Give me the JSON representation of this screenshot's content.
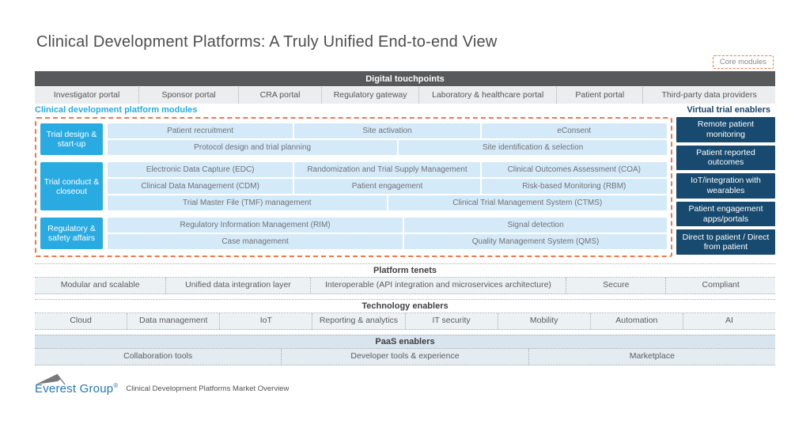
{
  "title": "Clinical Development Platforms: A Truly Unified End-to-end View",
  "core_modules_label": "Core modules",
  "colors": {
    "accent_cyan": "#29abe2",
    "navy": "#174a6e",
    "module_cell_bg": "#d5eaf8",
    "dark_bar": "#58595b",
    "dashed_border_orange": "#f0764e",
    "paas_header_bg": "#d8e5ee",
    "paas_cell_bg": "#e4ebf1",
    "section_cell_bg": "#ecf1f4",
    "logo_blue": "#2577b5"
  },
  "digital_touchpoints": {
    "header": "Digital touchpoints",
    "portals": [
      {
        "label": "Investigator portal",
        "flex": 132
      },
      {
        "label": "Sponsor portal",
        "flex": 125
      },
      {
        "label": "CRA portal",
        "flex": 103
      },
      {
        "label": "Regulatory gateway",
        "flex": 122
      },
      {
        "label": "Laboratory & healthcare portal",
        "flex": 177
      },
      {
        "label": "Patient portal",
        "flex": 107
      },
      {
        "label": "Third-party data providers",
        "flex": 170
      }
    ]
  },
  "platform_modules_label": "Clinical development platform modules",
  "module_groups": [
    {
      "label": "Trial design & start-up",
      "rows": [
        [
          {
            "label": "Patient recruitment",
            "flex": 1
          },
          {
            "label": "Site activation",
            "flex": 1
          },
          {
            "label": "eConsent",
            "flex": 1
          }
        ],
        [
          {
            "label": "Protocol design and trial planning",
            "flex": 52
          },
          {
            "label": "Site identification & selection",
            "flex": 48
          }
        ]
      ]
    },
    {
      "label": "Trial conduct & closeout",
      "rows": [
        [
          {
            "label": "Electronic Data Capture (EDC)",
            "flex": 1
          },
          {
            "label": "Randomization and Trial Supply Management",
            "flex": 1
          },
          {
            "label": "Clinical Outcomes Assessment (COA)",
            "flex": 1
          }
        ],
        [
          {
            "label": "Clinical Data Management (CDM)",
            "flex": 1
          },
          {
            "label": "Patient engagement",
            "flex": 1
          },
          {
            "label": "Risk-based Monitoring (RBM)",
            "flex": 1
          }
        ],
        [
          {
            "label": "Trial Master File (TMF) management",
            "flex": 50
          },
          {
            "label": "Clinical Trial Management System (CTMS)",
            "flex": 50
          }
        ]
      ]
    },
    {
      "label": "Regulatory & safety affairs",
      "rows": [
        [
          {
            "label": "Regulatory Information Management (RIM)",
            "flex": 53
          },
          {
            "label": "Signal detection",
            "flex": 47
          }
        ],
        [
          {
            "label": "Case management",
            "flex": 53
          },
          {
            "label": "Quality Management System (QMS)",
            "flex": 47
          }
        ]
      ]
    }
  ],
  "virtual_trial_enablers": {
    "label": "Virtual trial enablers",
    "items": [
      "Remote patient monitoring",
      "Patient reported outcomes",
      "IoT/integration with wearables",
      "Patient engagement apps/portals",
      "Direct to patient / Direct from patient"
    ]
  },
  "sections": [
    {
      "header": "Platform tenets",
      "header_bg": "#ffffff",
      "cell_bg": "#ecf1f4",
      "cells": [
        {
          "label": "Modular and scalable",
          "flex": 165
        },
        {
          "label": "Unified data integration layer",
          "flex": 182
        },
        {
          "label": "Interoperable (API integration and microservices architecture)",
          "flex": 330
        },
        {
          "label": "Secure",
          "flex": 123
        },
        {
          "label": "Compliant",
          "flex": 136
        }
      ]
    },
    {
      "header": "Technology enablers",
      "header_bg": "#ffffff",
      "cell_bg": "#ecf1f4",
      "cells": [
        {
          "label": "Cloud",
          "flex": 1
        },
        {
          "label": "Data management",
          "flex": 1
        },
        {
          "label": "IoT",
          "flex": 1
        },
        {
          "label": "Reporting & analytics",
          "flex": 1
        },
        {
          "label": "IT security",
          "flex": 1
        },
        {
          "label": "Mobility",
          "flex": 1
        },
        {
          "label": "Automation",
          "flex": 1
        },
        {
          "label": "AI",
          "flex": 1
        }
      ]
    },
    {
      "header": "PaaS enablers",
      "header_bg": "#d8e5ee",
      "cell_bg": "#e4ebf1",
      "cells": [
        {
          "label": "Collaboration tools",
          "flex": 1
        },
        {
          "label": "Developer tools & experience",
          "flex": 1
        },
        {
          "label": "Marketplace",
          "flex": 1
        }
      ]
    }
  ],
  "footer": {
    "logo_text": "Everest Group",
    "logo_reg": "®",
    "caption": "Clinical Development Platforms Market Overview"
  }
}
